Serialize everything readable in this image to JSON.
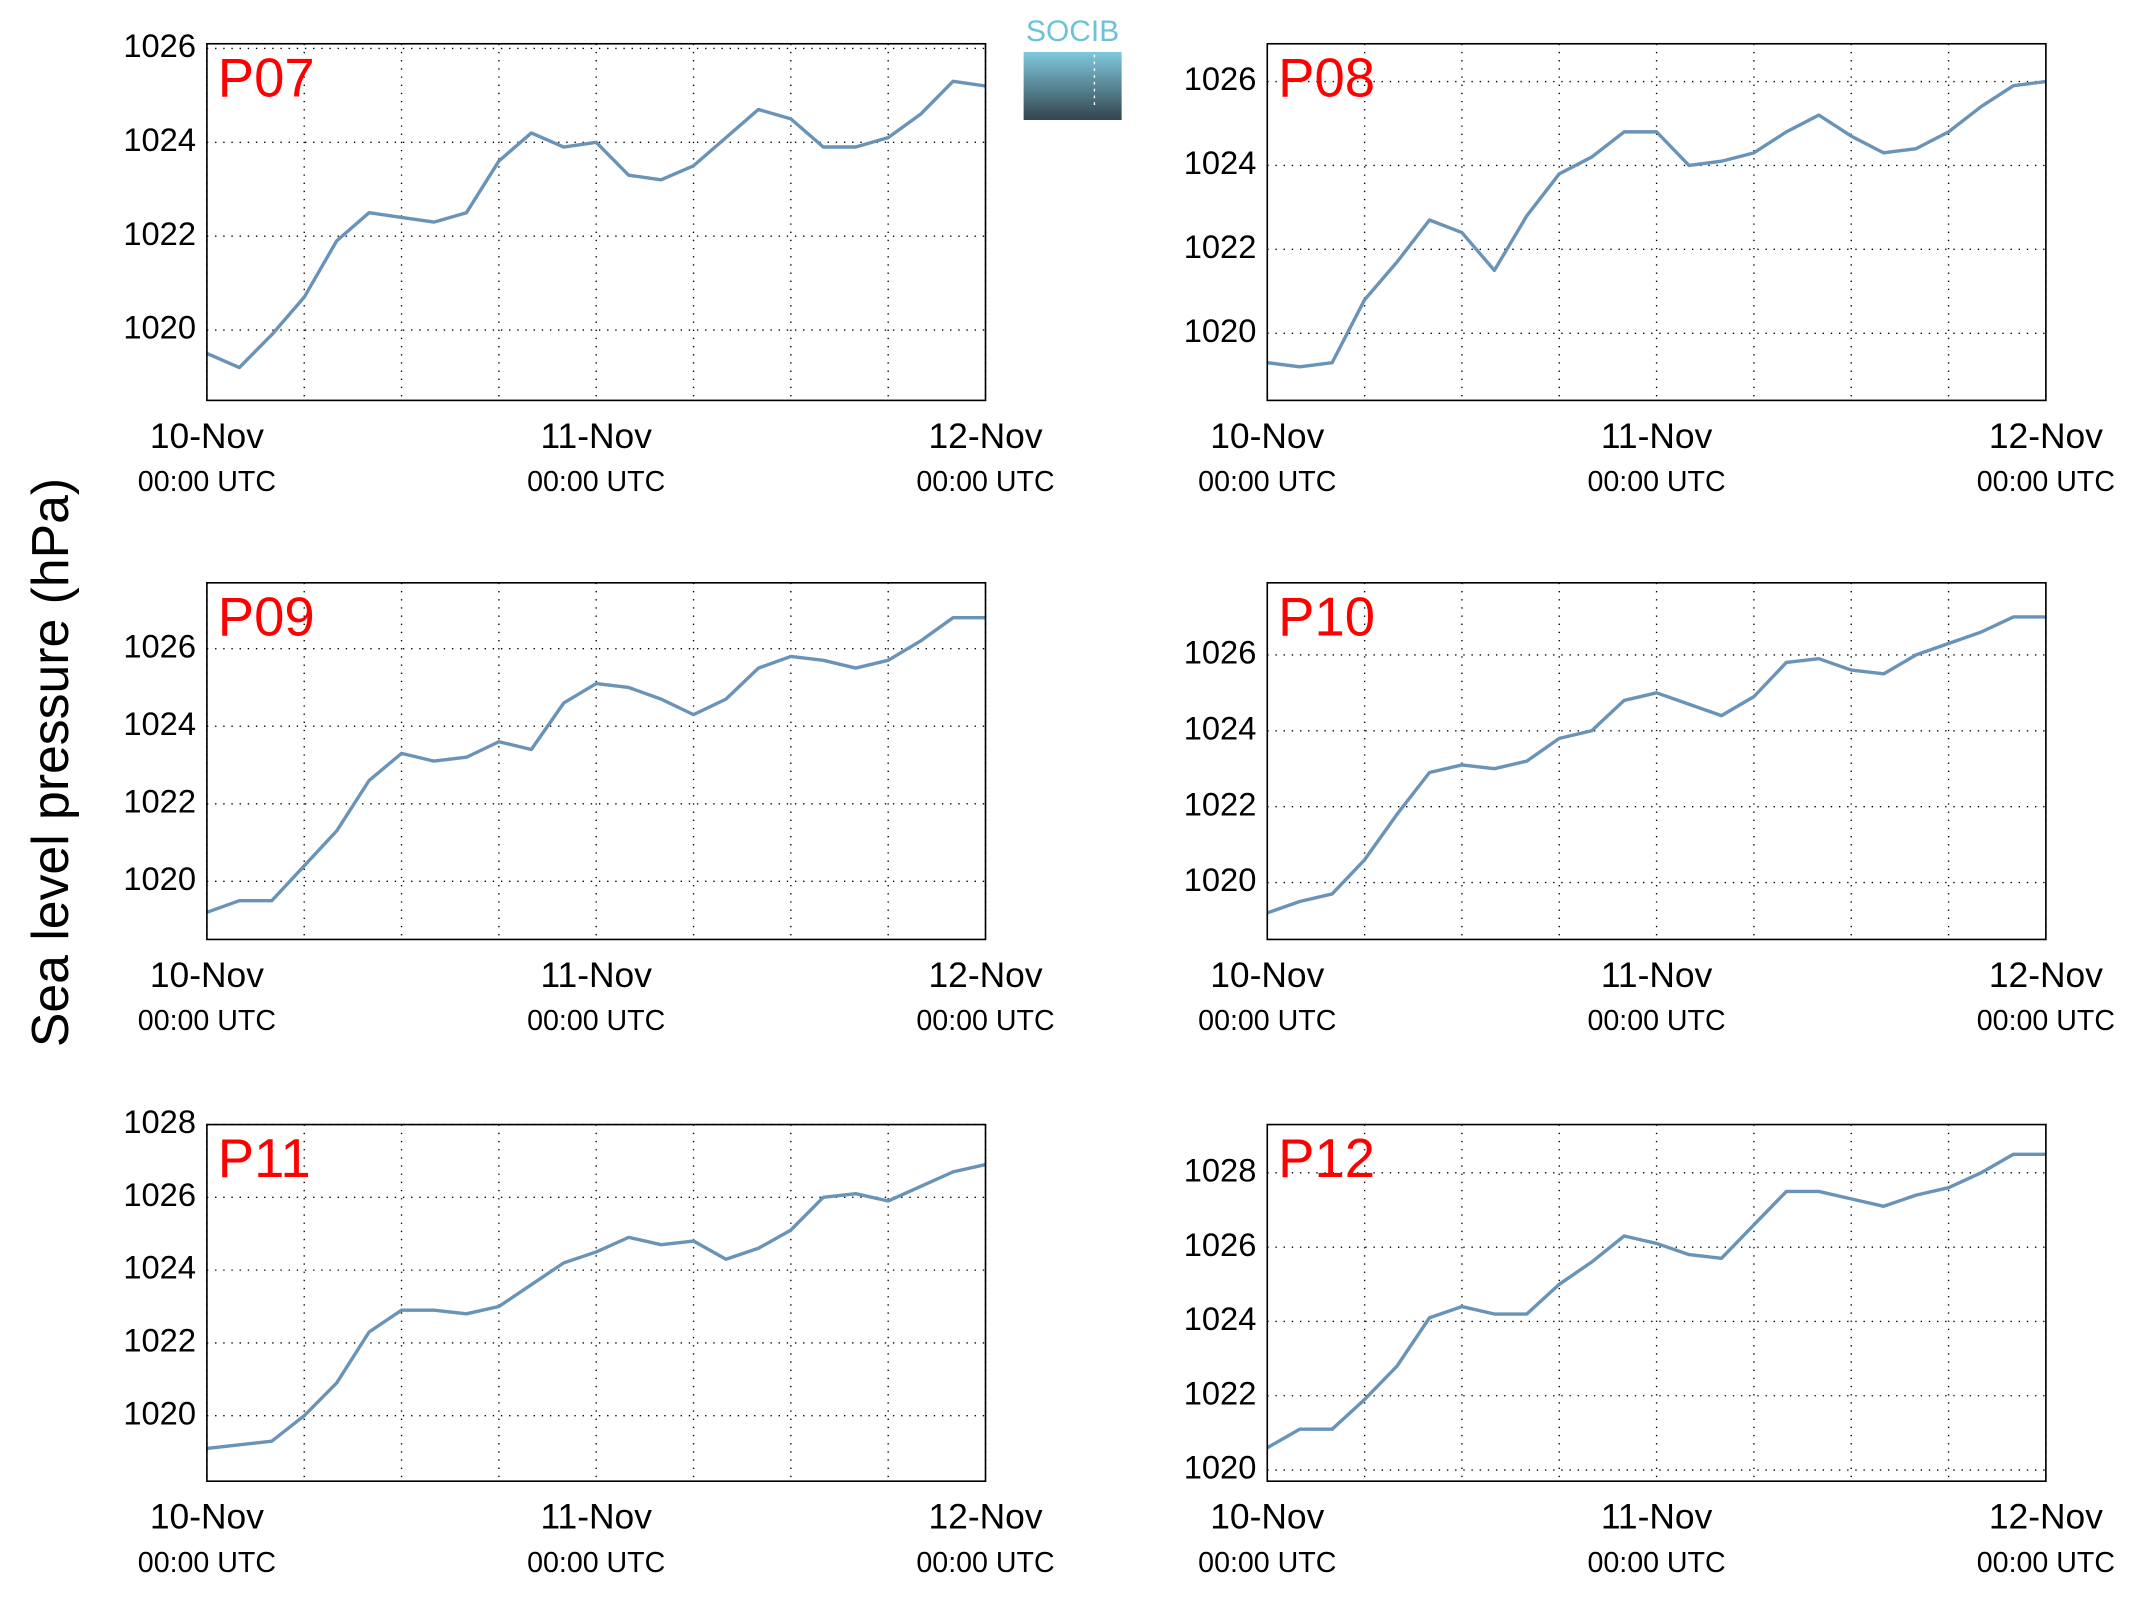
{
  "ylabel": "Sea level pressure (hPa)",
  "logo": "SOCIB",
  "chart_data": [
    {
      "type": "line",
      "title": "P07",
      "color": "#6a93b8",
      "grid": true,
      "x": [
        0,
        2,
        4,
        6,
        8,
        10,
        12,
        14,
        16,
        18,
        20,
        22,
        24,
        26,
        28,
        30,
        32,
        34,
        36,
        38,
        40,
        42,
        44,
        46,
        48
      ],
      "values": [
        1019.5,
        1019.2,
        1019.9,
        1020.7,
        1021.9,
        1022.5,
        1022.4,
        1022.3,
        1022.5,
        1023.6,
        1024.2,
        1023.9,
        1024.0,
        1023.3,
        1023.2,
        1023.5,
        1024.1,
        1024.7,
        1024.5,
        1023.9,
        1023.9,
        1024.1,
        1024.6,
        1025.3,
        1025.2
      ],
      "xlim": [
        0,
        48
      ],
      "xticks": [
        0,
        6,
        12,
        18,
        24,
        30,
        36,
        42,
        48
      ],
      "xlabels": [
        {
          "value": 0,
          "label": "10-Nov",
          "time": "00:00 UTC"
        },
        {
          "value": 24,
          "label": "11-Nov",
          "time": "00:00 UTC"
        },
        {
          "value": 48,
          "label": "12-Nov",
          "time": "00:00 UTC"
        }
      ],
      "ylim": [
        1018.5,
        1026.1
      ],
      "yticks": [
        1020,
        1022,
        1024,
        1026
      ]
    },
    {
      "type": "line",
      "title": "P08",
      "color": "#6a93b8",
      "grid": true,
      "x": [
        0,
        2,
        4,
        6,
        8,
        10,
        12,
        14,
        16,
        18,
        20,
        22,
        24,
        26,
        28,
        30,
        32,
        34,
        36,
        38,
        40,
        42,
        44,
        46,
        48
      ],
      "values": [
        1019.3,
        1019.2,
        1019.3,
        1020.8,
        1021.7,
        1022.7,
        1022.4,
        1021.5,
        1022.8,
        1023.8,
        1024.2,
        1024.8,
        1024.8,
        1024.0,
        1024.1,
        1024.3,
        1024.8,
        1025.2,
        1024.7,
        1024.3,
        1024.4,
        1024.8,
        1025.4,
        1025.9,
        1026.0
      ],
      "xlim": [
        0,
        48
      ],
      "xticks": [
        0,
        6,
        12,
        18,
        24,
        30,
        36,
        42,
        48
      ],
      "xlabels": [
        {
          "value": 0,
          "label": "10-Nov",
          "time": "00:00 UTC"
        },
        {
          "value": 24,
          "label": "11-Nov",
          "time": "00:00 UTC"
        },
        {
          "value": 48,
          "label": "12-Nov",
          "time": "00:00 UTC"
        }
      ],
      "ylim": [
        1018.4,
        1026.9
      ],
      "yticks": [
        1020,
        1022,
        1024,
        1026
      ]
    },
    {
      "type": "line",
      "title": "P09",
      "color": "#6a93b8",
      "grid": true,
      "x": [
        0,
        2,
        4,
        6,
        8,
        10,
        12,
        14,
        16,
        18,
        20,
        22,
        24,
        26,
        28,
        30,
        32,
        34,
        36,
        38,
        40,
        42,
        44,
        46,
        48
      ],
      "values": [
        1019.2,
        1019.5,
        1019.5,
        1020.4,
        1021.3,
        1022.6,
        1023.3,
        1023.1,
        1023.2,
        1023.6,
        1023.4,
        1024.6,
        1025.1,
        1025.0,
        1024.7,
        1024.3,
        1024.7,
        1025.5,
        1025.8,
        1025.7,
        1025.5,
        1025.7,
        1026.2,
        1026.8,
        1026.8
      ],
      "xlim": [
        0,
        48
      ],
      "xticks": [
        0,
        6,
        12,
        18,
        24,
        30,
        36,
        42,
        48
      ],
      "xlabels": [
        {
          "value": 0,
          "label": "10-Nov",
          "time": "00:00 UTC"
        },
        {
          "value": 24,
          "label": "11-Nov",
          "time": "00:00 UTC"
        },
        {
          "value": 48,
          "label": "12-Nov",
          "time": "00:00 UTC"
        }
      ],
      "ylim": [
        1018.5,
        1027.7
      ],
      "yticks": [
        1020,
        1022,
        1024,
        1026
      ]
    },
    {
      "type": "line",
      "title": "P10",
      "color": "#6a93b8",
      "grid": true,
      "x": [
        0,
        2,
        4,
        6,
        8,
        10,
        12,
        14,
        16,
        18,
        20,
        22,
        24,
        26,
        28,
        30,
        32,
        34,
        36,
        38,
        40,
        42,
        44,
        46,
        48
      ],
      "values": [
        1019.2,
        1019.5,
        1019.7,
        1020.6,
        1021.8,
        1022.9,
        1023.1,
        1023.0,
        1023.2,
        1023.8,
        1024.0,
        1024.8,
        1025.0,
        1024.7,
        1024.4,
        1024.9,
        1025.8,
        1025.9,
        1025.6,
        1025.5,
        1026.0,
        1026.3,
        1026.6,
        1027.0,
        1027.0
      ],
      "xlim": [
        0,
        48
      ],
      "xticks": [
        0,
        6,
        12,
        18,
        24,
        30,
        36,
        42,
        48
      ],
      "xlabels": [
        {
          "value": 0,
          "label": "10-Nov",
          "time": "00:00 UTC"
        },
        {
          "value": 24,
          "label": "11-Nov",
          "time": "00:00 UTC"
        },
        {
          "value": 48,
          "label": "12-Nov",
          "time": "00:00 UTC"
        }
      ],
      "ylim": [
        1018.5,
        1027.9
      ],
      "yticks": [
        1020,
        1022,
        1024,
        1026
      ]
    },
    {
      "type": "line",
      "title": "P11",
      "color": "#6a93b8",
      "grid": true,
      "x": [
        0,
        2,
        4,
        6,
        8,
        10,
        12,
        14,
        16,
        18,
        20,
        22,
        24,
        26,
        28,
        30,
        32,
        34,
        36,
        38,
        40,
        42,
        44,
        46,
        48
      ],
      "values": [
        1019.1,
        1019.2,
        1019.3,
        1020.0,
        1020.9,
        1022.3,
        1022.9,
        1022.9,
        1022.8,
        1023.0,
        1023.6,
        1024.2,
        1024.5,
        1024.9,
        1024.7,
        1024.8,
        1024.3,
        1024.6,
        1025.1,
        1026.0,
        1026.1,
        1025.9,
        1026.3,
        1026.7,
        1026.9
      ],
      "xlim": [
        0,
        48
      ],
      "xticks": [
        0,
        6,
        12,
        18,
        24,
        30,
        36,
        42,
        48
      ],
      "xlabels": [
        {
          "value": 0,
          "label": "10-Nov",
          "time": "00:00 UTC"
        },
        {
          "value": 24,
          "label": "11-Nov",
          "time": "00:00 UTC"
        },
        {
          "value": 48,
          "label": "12-Nov",
          "time": "00:00 UTC"
        }
      ],
      "ylim": [
        1018.2,
        1028.0
      ],
      "yticks": [
        1020,
        1022,
        1024,
        1026,
        1028
      ]
    },
    {
      "type": "line",
      "title": "P12",
      "color": "#6a93b8",
      "grid": true,
      "x": [
        0,
        2,
        4,
        6,
        8,
        10,
        12,
        14,
        16,
        18,
        20,
        22,
        24,
        26,
        28,
        30,
        32,
        34,
        36,
        38,
        40,
        42,
        44,
        46,
        48
      ],
      "values": [
        1020.6,
        1021.1,
        1021.1,
        1021.9,
        1022.8,
        1024.1,
        1024.4,
        1024.2,
        1024.2,
        1025.0,
        1025.6,
        1026.3,
        1026.1,
        1025.8,
        1025.7,
        1026.6,
        1027.5,
        1027.5,
        1027.3,
        1027.1,
        1027.4,
        1027.6,
        1028.0,
        1028.5,
        1028.5
      ],
      "xlim": [
        0,
        48
      ],
      "xticks": [
        0,
        6,
        12,
        18,
        24,
        30,
        36,
        42,
        48
      ],
      "xlabels": [
        {
          "value": 0,
          "label": "10-Nov",
          "time": "00:00 UTC"
        },
        {
          "value": 24,
          "label": "11-Nov",
          "time": "00:00 UTC"
        },
        {
          "value": 48,
          "label": "12-Nov",
          "time": "00:00 UTC"
        }
      ],
      "ylim": [
        1019.7,
        1029.3
      ],
      "yticks": [
        1020,
        1022,
        1024,
        1026,
        1028
      ]
    }
  ]
}
